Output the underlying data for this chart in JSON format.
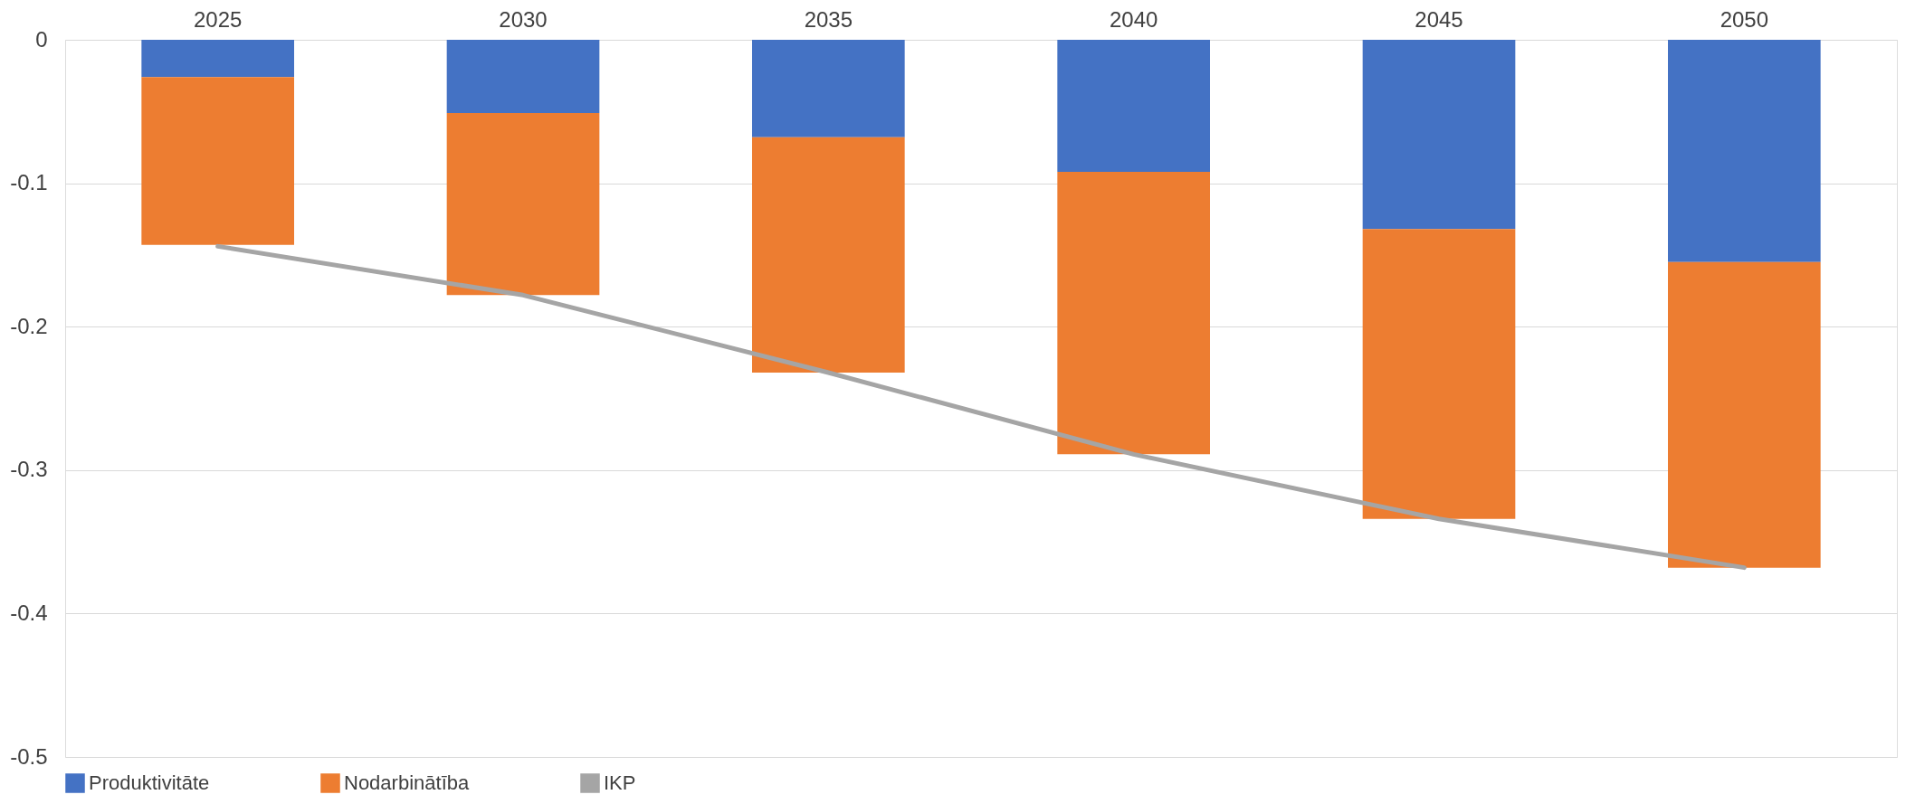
{
  "chart_data": {
    "type": "bar",
    "stacked": true,
    "categories": [
      "2025",
      "2030",
      "2035",
      "2040",
      "2045",
      "2050"
    ],
    "series": [
      {
        "name": "Produktivitāte",
        "color": "#4472c4",
        "values": [
          -0.026,
          -0.051,
          -0.068,
          -0.092,
          -0.132,
          -0.155
        ]
      },
      {
        "name": "Nodarbinātība",
        "color": "#ed7d31",
        "values": [
          -0.117,
          -0.127,
          -0.164,
          -0.197,
          -0.202,
          -0.213
        ]
      },
      {
        "name": "IKP",
        "type": "line",
        "color": "#a5a5a5",
        "values": [
          -0.144,
          -0.178,
          -0.232,
          -0.289,
          -0.334,
          -0.368
        ]
      }
    ],
    "ylim": [
      -0.5,
      0
    ],
    "yticks": [
      -0.5,
      -0.4,
      -0.3,
      -0.2,
      -0.1,
      0
    ],
    "grid": "y",
    "legend": "bottom"
  }
}
